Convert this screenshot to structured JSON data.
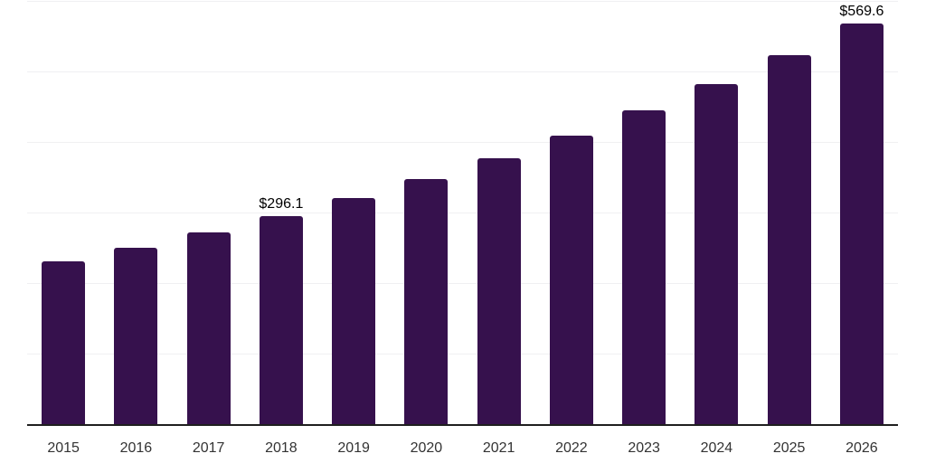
{
  "chart_data": {
    "type": "bar",
    "title": "",
    "xlabel": "",
    "ylabel": "",
    "categories": [
      "2015",
      "2016",
      "2017",
      "2018",
      "2019",
      "2020",
      "2021",
      "2022",
      "2023",
      "2024",
      "2025",
      "2026"
    ],
    "values": [
      231.7,
      251.4,
      272.9,
      296.1,
      321.3,
      348.7,
      378.4,
      410.6,
      445.6,
      483.5,
      524.7,
      569.6
    ],
    "data_labels": {
      "2018": "$296.1",
      "2026": "$569.6"
    },
    "ylim": [
      0,
      600
    ],
    "gridline_step": 100,
    "grid": "horizontal-only",
    "legend": "none",
    "bar_color": "#36114D",
    "axis_line_color": "#1f1f1f",
    "gridline_color": "#f0f0f2",
    "tick_label_color": "#333333",
    "data_label_color": "#000000"
  }
}
